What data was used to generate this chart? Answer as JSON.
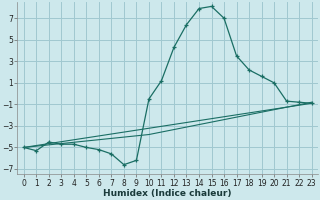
{
  "xlabel": "Humidex (Indice chaleur)",
  "background_color": "#cde8ec",
  "grid_color": "#a0c8d0",
  "line_color": "#1a6e64",
  "xlim": [
    -0.5,
    23.5
  ],
  "ylim": [
    -7.5,
    8.5
  ],
  "xticks": [
    0,
    1,
    2,
    3,
    4,
    5,
    6,
    7,
    8,
    9,
    10,
    11,
    12,
    13,
    14,
    15,
    16,
    17,
    18,
    19,
    20,
    21,
    22,
    23
  ],
  "yticks": [
    -7,
    -5,
    -3,
    -1,
    1,
    3,
    5,
    7
  ],
  "line1_x": [
    0,
    1,
    2,
    3,
    4,
    5,
    6,
    7,
    8,
    9,
    10,
    11,
    12,
    13,
    14,
    15,
    16,
    17,
    18,
    19,
    20,
    21,
    22,
    23
  ],
  "line1_y": [
    -5.0,
    -5.3,
    -4.5,
    -4.7,
    -4.7,
    -5.0,
    -5.2,
    -5.6,
    -6.6,
    -6.2,
    -0.5,
    1.2,
    4.3,
    6.4,
    7.9,
    8.1,
    7.0,
    3.5,
    2.2,
    1.6,
    1.0,
    -0.7,
    -0.8,
    -0.9
  ],
  "line2_x": [
    0,
    10,
    23
  ],
  "line2_y": [
    -5.0,
    -3.8,
    -0.8
  ],
  "line3_x": [
    0,
    23
  ],
  "line3_y": [
    -5.0,
    -0.9
  ]
}
